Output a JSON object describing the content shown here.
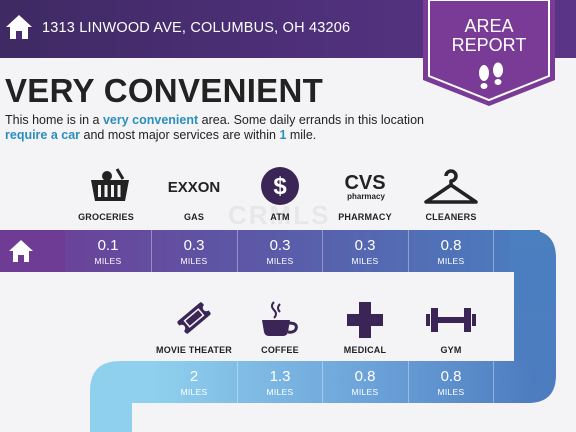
{
  "header": {
    "address": "1313 LINWOOD AVE, COLUMBUS, OH 43206",
    "badge_line1": "AREA",
    "badge_line2": "REPORT",
    "icons": {
      "home": "home-icon",
      "footprints": "footprints-icon"
    }
  },
  "summary": {
    "title": "VERY CONVENIENT",
    "desc_1": "This home is in a ",
    "desc_hl1": "very convenient",
    "desc_2": " area. Some daily errands in this location ",
    "desc_hl2": "require a car",
    "desc_3": " and most major services are within ",
    "desc_hl3": "1",
    "desc_4": " mile."
  },
  "watermark": "CRMLS",
  "row1": {
    "services": [
      {
        "label": "GROCERIES",
        "icon": "grocery-basket-icon",
        "value": "0.1",
        "unit": "MILES"
      },
      {
        "label": "GAS",
        "icon": "exxon-logo",
        "logo_text": "EXXON",
        "value": "0.3",
        "unit": "MILES"
      },
      {
        "label": "ATM",
        "icon": "dollar-icon",
        "logo_text": "$",
        "value": "0.3",
        "unit": "MILES"
      },
      {
        "label": "PHARMACY",
        "icon": "cvs-logo",
        "logo_text": "CVS",
        "logo_sub": "pharmacy",
        "value": "0.3",
        "unit": "MILES"
      },
      {
        "label": "CLEANERS",
        "icon": "hanger-icon",
        "value": "0.8",
        "unit": "MILES"
      }
    ]
  },
  "row2": {
    "services": [
      {
        "label": "MOVIE THEATER",
        "icon": "movie-ticket-icon",
        "value": "2",
        "unit": "MILES"
      },
      {
        "label": "COFFEE",
        "icon": "coffee-cup-icon",
        "value": "1.3",
        "unit": "MILES"
      },
      {
        "label": "MEDICAL",
        "icon": "medical-cross-icon",
        "value": "0.8",
        "unit": "MILES"
      },
      {
        "label": "GYM",
        "icon": "dumbbell-icon",
        "value": "0.8",
        "unit": "MILES"
      }
    ]
  },
  "colors": {
    "header": "#4d2f78",
    "badge": "#7a3b97",
    "highlight": "#2a8fbd",
    "band_start": "#6e3c94",
    "band_end": "#4a7fc0",
    "band2_start": "#8fd0ee",
    "band2_end": "#4d7cbf"
  }
}
